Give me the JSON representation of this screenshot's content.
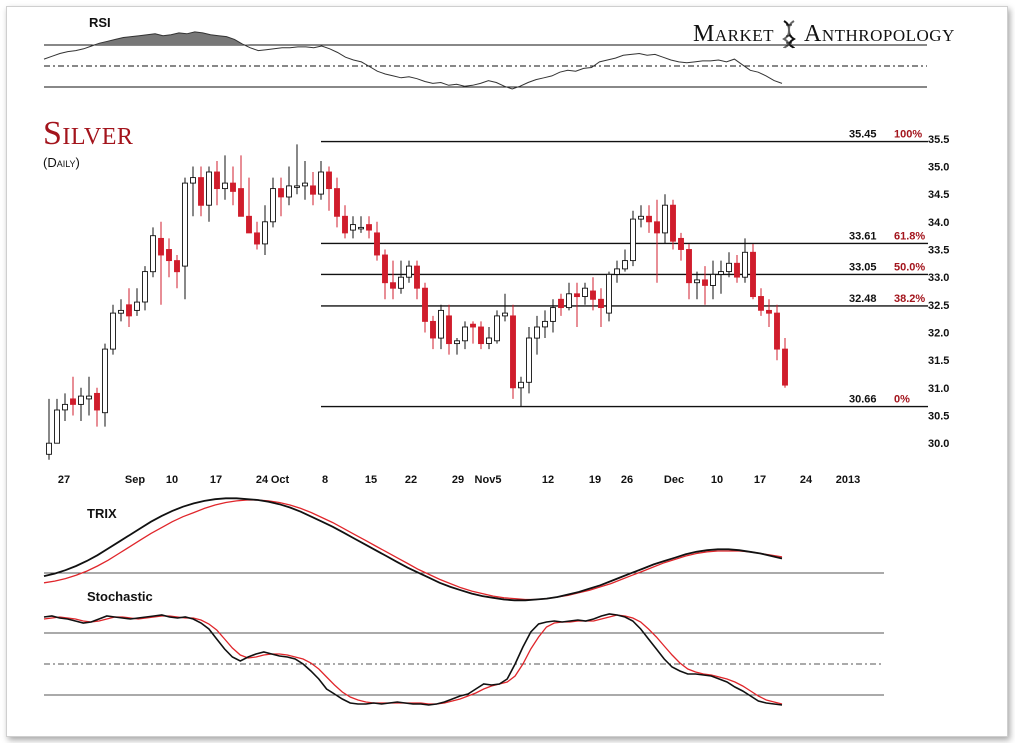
{
  "brand": {
    "word1": "Market",
    "word2": "Anthropology"
  },
  "chart_data": {
    "type": "candlestick",
    "title": "Silver",
    "subtitle": "(Daily)",
    "x_tick_labels": [
      "27",
      "Sep",
      "10",
      "17",
      "24",
      "Oct",
      "8",
      "15",
      "22",
      "29",
      "Nov5",
      "12",
      "19",
      "26",
      "Dec",
      "10",
      "17",
      "24",
      "2013"
    ],
    "y_ticks": [
      30.0,
      30.5,
      31.0,
      31.5,
      32.0,
      32.5,
      33.0,
      33.5,
      34.0,
      34.5,
      35.0,
      35.5
    ],
    "ylim": [
      29.75,
      35.75
    ],
    "colors": {
      "up": "#ffffff",
      "down": "#d01d2c",
      "fib_pct": "#a3141c",
      "signal": "#e0262b"
    },
    "fib_levels": [
      {
        "price": "35.45",
        "pct": "100%"
      },
      {
        "price": "33.61",
        "pct": "61.8%"
      },
      {
        "price": "33.05",
        "pct": "50.0%"
      },
      {
        "price": "32.48",
        "pct": "38.2%"
      },
      {
        "price": "30.66",
        "pct": "0%"
      }
    ],
    "candles": [
      [
        29.8,
        30.0,
        30.8,
        29.7
      ],
      [
        30.0,
        30.6,
        30.8,
        30.1
      ],
      [
        30.6,
        30.7,
        30.9,
        30.4
      ],
      [
        30.8,
        30.7,
        31.2,
        30.5
      ],
      [
        30.7,
        30.85,
        31.0,
        30.4
      ],
      [
        30.8,
        30.85,
        31.2,
        30.5
      ],
      [
        30.9,
        30.6,
        31.0,
        30.3
      ],
      [
        30.55,
        31.7,
        31.8,
        30.3
      ],
      [
        31.7,
        32.35,
        32.5,
        31.6
      ],
      [
        32.35,
        32.4,
        32.6,
        32.2
      ],
      [
        32.5,
        32.3,
        32.8,
        32.1
      ],
      [
        32.4,
        32.55,
        32.8,
        32.3
      ],
      [
        32.55,
        33.1,
        33.2,
        32.4
      ],
      [
        33.1,
        33.75,
        33.9,
        33.0
      ],
      [
        33.7,
        33.4,
        34.0,
        32.5
      ],
      [
        33.5,
        33.3,
        33.7,
        33.0
      ],
      [
        33.3,
        33.1,
        33.4,
        32.8
      ],
      [
        33.2,
        34.7,
        34.8,
        32.6
      ],
      [
        34.7,
        34.8,
        35.0,
        34.1
      ],
      [
        34.8,
        34.3,
        35.0,
        34.1
      ],
      [
        34.3,
        34.9,
        35.0,
        34.0
      ],
      [
        34.9,
        34.6,
        35.1,
        34.3
      ],
      [
        34.6,
        34.7,
        35.2,
        34.4
      ],
      [
        34.7,
        34.55,
        35.0,
        34.3
      ],
      [
        34.6,
        34.1,
        35.2,
        34.1
      ],
      [
        34.1,
        33.8,
        34.8,
        33.8
      ],
      [
        33.8,
        33.6,
        34.0,
        33.5
      ],
      [
        33.6,
        34.0,
        34.3,
        33.4
      ],
      [
        34.0,
        34.6,
        34.8,
        33.9
      ],
      [
        34.6,
        34.45,
        34.8,
        34.1
      ],
      [
        34.45,
        34.65,
        35.0,
        34.3
      ],
      [
        34.65,
        34.65,
        35.4,
        34.5
      ],
      [
        34.65,
        34.7,
        35.1,
        34.4
      ],
      [
        34.65,
        34.5,
        34.9,
        34.3
      ],
      [
        34.5,
        34.9,
        35.1,
        34.4
      ],
      [
        34.9,
        34.6,
        35.0,
        34.2
      ],
      [
        34.6,
        34.1,
        34.8,
        33.9
      ],
      [
        34.1,
        33.8,
        34.3,
        33.7
      ],
      [
        33.85,
        33.95,
        34.1,
        33.7
      ],
      [
        33.9,
        33.9,
        34.1,
        33.8
      ],
      [
        33.95,
        33.85,
        34.1,
        33.7
      ],
      [
        33.8,
        33.4,
        34.0,
        33.3
      ],
      [
        33.4,
        32.9,
        33.5,
        32.6
      ],
      [
        32.9,
        32.8,
        33.3,
        32.6
      ],
      [
        32.8,
        33.0,
        33.3,
        32.7
      ],
      [
        33.0,
        33.2,
        33.3,
        32.9
      ],
      [
        33.2,
        32.8,
        33.3,
        32.6
      ],
      [
        32.8,
        32.2,
        32.9,
        32.0
      ],
      [
        32.2,
        31.9,
        32.3,
        31.7
      ],
      [
        31.9,
        32.4,
        32.5,
        31.7
      ],
      [
        32.3,
        31.8,
        32.5,
        31.6
      ],
      [
        31.8,
        31.85,
        31.9,
        31.6
      ],
      [
        31.85,
        32.1,
        32.2,
        31.7
      ],
      [
        32.15,
        32.1,
        32.2,
        31.8
      ],
      [
        32.1,
        31.8,
        32.2,
        31.7
      ],
      [
        31.8,
        31.9,
        32.1,
        31.7
      ],
      [
        31.85,
        32.3,
        32.4,
        31.8
      ],
      [
        32.3,
        32.35,
        32.7,
        32.2
      ],
      [
        32.3,
        31.0,
        32.5,
        30.8
      ],
      [
        31.0,
        31.1,
        31.2,
        30.66
      ],
      [
        31.1,
        31.9,
        32.1,
        30.9
      ],
      [
        31.9,
        32.1,
        32.3,
        31.6
      ],
      [
        32.1,
        32.2,
        32.4,
        31.9
      ],
      [
        32.2,
        32.45,
        32.6,
        32.0
      ],
      [
        32.6,
        32.45,
        32.7,
        32.3
      ],
      [
        32.45,
        32.7,
        32.9,
        32.4
      ],
      [
        32.7,
        32.65,
        32.9,
        32.1
      ],
      [
        32.65,
        32.8,
        32.9,
        32.5
      ],
      [
        32.75,
        32.6,
        33.0,
        32.4
      ],
      [
        32.6,
        32.45,
        32.8,
        32.1
      ],
      [
        32.35,
        33.05,
        33.1,
        32.2
      ],
      [
        33.05,
        33.15,
        33.3,
        32.9
      ],
      [
        33.15,
        33.3,
        33.5,
        33.1
      ],
      [
        33.3,
        34.05,
        34.2,
        33.2
      ],
      [
        34.05,
        34.1,
        34.3,
        33.9
      ],
      [
        34.1,
        34.0,
        34.3,
        33.8
      ],
      [
        34.0,
        33.8,
        34.4,
        32.9
      ],
      [
        33.8,
        34.3,
        34.5,
        33.6
      ],
      [
        34.3,
        33.65,
        34.4,
        33.5
      ],
      [
        33.7,
        33.5,
        33.8,
        33.3
      ],
      [
        33.5,
        32.9,
        33.6,
        32.6
      ],
      [
        32.9,
        32.95,
        33.1,
        32.6
      ],
      [
        32.95,
        32.85,
        33.2,
        32.5
      ],
      [
        32.85,
        33.05,
        33.3,
        32.6
      ],
      [
        33.05,
        33.1,
        33.3,
        32.7
      ],
      [
        33.1,
        33.25,
        33.45,
        33.0
      ],
      [
        33.25,
        33.0,
        33.4,
        32.9
      ],
      [
        33.0,
        33.45,
        33.7,
        32.9
      ],
      [
        33.45,
        32.65,
        33.6,
        32.6
      ],
      [
        32.65,
        32.4,
        32.8,
        32.3
      ],
      [
        32.4,
        32.35,
        32.6,
        32.1
      ],
      [
        32.35,
        31.7,
        32.5,
        31.5
      ],
      [
        31.7,
        31.05,
        31.9,
        31.0
      ]
    ],
    "rsi": {
      "label": "RSI",
      "levels": [
        70,
        50,
        30
      ],
      "values": [
        58,
        61,
        64,
        66,
        67,
        69,
        72,
        75,
        77,
        79,
        81,
        82,
        83,
        84,
        85,
        83,
        84,
        86,
        85,
        87,
        86,
        84,
        83,
        82,
        79,
        74,
        70,
        67,
        68,
        69,
        70,
        70,
        71,
        71,
        70,
        72,
        69,
        65,
        60,
        57,
        55,
        50,
        45,
        42,
        40,
        38,
        39,
        37,
        34,
        32,
        33,
        30,
        31,
        29,
        30,
        32,
        35,
        33,
        29,
        26,
        29,
        33,
        36,
        38,
        40,
        44,
        46,
        45,
        48,
        49,
        55,
        57,
        59,
        62,
        63,
        64,
        62,
        63,
        60,
        57,
        55,
        54,
        55,
        56,
        56,
        57,
        55,
        58,
        52,
        46,
        44,
        40,
        35,
        32
      ]
    },
    "trix": {
      "label": "TRIX",
      "trix": [
        -0.25,
        -0.22,
        -0.18,
        -0.13,
        -0.07,
        0.0,
        0.08,
        0.16,
        0.24,
        0.32,
        0.4,
        0.47,
        0.53,
        0.58,
        0.62,
        0.65,
        0.67,
        0.68,
        0.68,
        0.67,
        0.66,
        0.64,
        0.61,
        0.57,
        0.52,
        0.46,
        0.4,
        0.34,
        0.27,
        0.2,
        0.13,
        0.06,
        -0.01,
        -0.08,
        -0.15,
        -0.21,
        -0.27,
        -0.33,
        -0.38,
        -0.42,
        -0.46,
        -0.49,
        -0.51,
        -0.53,
        -0.54,
        -0.54,
        -0.53,
        -0.52,
        -0.5,
        -0.47,
        -0.44,
        -0.4,
        -0.36,
        -0.31,
        -0.26,
        -0.21,
        -0.16,
        -0.11,
        -0.07,
        -0.03,
        0.01,
        0.04,
        0.06,
        0.07,
        0.07,
        0.06,
        0.04,
        0.02,
        -0.01,
        -0.04
      ],
      "signal": [
        -0.33,
        -0.31,
        -0.28,
        -0.24,
        -0.19,
        -0.13,
        -0.06,
        0.02,
        0.1,
        0.18,
        0.26,
        0.33,
        0.4,
        0.46,
        0.51,
        0.56,
        0.6,
        0.63,
        0.65,
        0.66,
        0.66,
        0.65,
        0.63,
        0.6,
        0.56,
        0.51,
        0.45,
        0.39,
        0.32,
        0.25,
        0.18,
        0.11,
        0.04,
        -0.03,
        -0.1,
        -0.17,
        -0.23,
        -0.29,
        -0.34,
        -0.39,
        -0.43,
        -0.46,
        -0.49,
        -0.51,
        -0.52,
        -0.53,
        -0.53,
        -0.52,
        -0.5,
        -0.48,
        -0.45,
        -0.42,
        -0.38,
        -0.34,
        -0.29,
        -0.24,
        -0.19,
        -0.14,
        -0.09,
        -0.05,
        -0.01,
        0.02,
        0.04,
        0.05,
        0.05,
        0.05,
        0.04,
        0.02,
        0.0,
        -0.02
      ],
      "ylim": [
        -0.62,
        0.72
      ]
    },
    "stochastic": {
      "label": "Stochastic",
      "levels": [
        80,
        50,
        20
      ],
      "k": [
        92,
        93,
        91,
        90,
        88,
        86,
        87,
        90,
        93,
        92,
        91,
        90,
        91,
        92,
        93,
        94,
        92,
        91,
        92,
        90,
        86,
        80,
        70,
        60,
        52,
        48,
        52,
        55,
        57,
        55,
        53,
        52,
        50,
        45,
        38,
        30,
        20,
        15,
        10,
        6,
        5,
        5,
        6,
        5,
        6,
        7,
        6,
        5,
        5,
        4,
        5,
        7,
        10,
        13,
        15,
        20,
        25,
        24,
        25,
        30,
        45,
        62,
        77,
        85,
        87,
        88,
        87,
        88,
        89,
        88,
        90,
        93,
        95,
        94,
        92,
        88,
        80,
        70,
        60,
        50,
        42,
        38,
        35,
        35,
        34,
        33,
        30,
        27,
        22,
        18,
        13,
        8,
        6,
        5,
        4
      ],
      "d": [
        90,
        91,
        92,
        91,
        90,
        88,
        87,
        88,
        90,
        92,
        92,
        91,
        90,
        91,
        92,
        93,
        93,
        92,
        91,
        91,
        89,
        85,
        79,
        70,
        61,
        54,
        51,
        52,
        54,
        55,
        55,
        54,
        52,
        50,
        46,
        40,
        32,
        24,
        17,
        12,
        9,
        7,
        6,
        6,
        6,
        6,
        6,
        6,
        6,
        5,
        5,
        6,
        8,
        10,
        13,
        16,
        20,
        23,
        25,
        27,
        33,
        45,
        60,
        72,
        82,
        86,
        87,
        87,
        88,
        88,
        88,
        90,
        92,
        94,
        93,
        91,
        87,
        80,
        72,
        63,
        54,
        46,
        40,
        37,
        35,
        34,
        32,
        30,
        27,
        23,
        18,
        13,
        9,
        7,
        5
      ]
    }
  }
}
